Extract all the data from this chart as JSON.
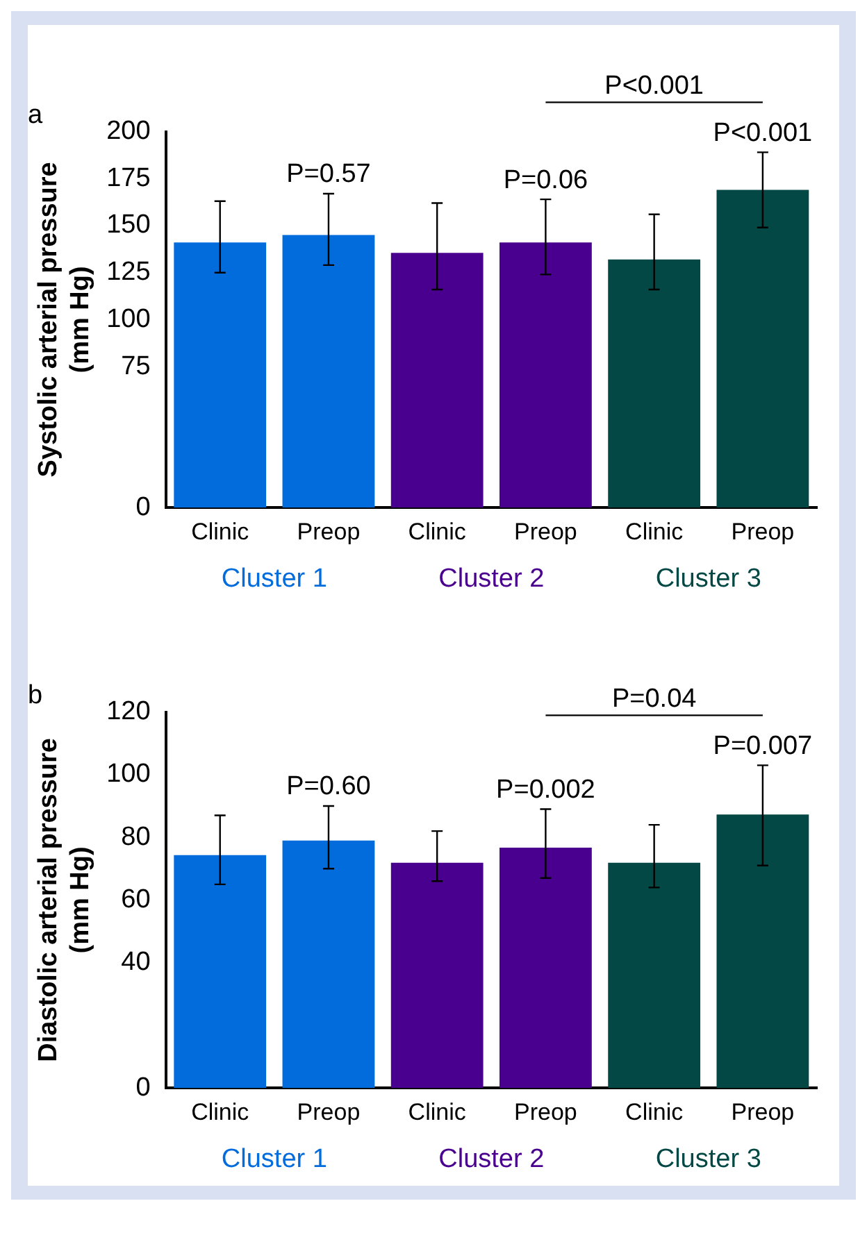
{
  "chart_data": [
    {
      "type": "bar",
      "title": "a",
      "ylabel": "Systolic arterial pressure\n(mm Hg)",
      "categories": [
        "Clinic",
        "Preop",
        "Clinic",
        "Preop",
        "Clinic",
        "Preop"
      ],
      "values": [
        141,
        145,
        135.5,
        141,
        132,
        169
      ],
      "colors": [
        "#026cdc",
        "#026cdc",
        "#4a008f",
        "#4a008f",
        "#034844",
        "#034844"
      ],
      "errors": [
        [
          125,
          163
        ],
        [
          129,
          167
        ],
        [
          116,
          162
        ],
        [
          124,
          164
        ],
        [
          116,
          156
        ],
        [
          149,
          189
        ]
      ],
      "ylim": [
        0,
        200
      ],
      "yticks": [
        0,
        75,
        100,
        125,
        150,
        175,
        200
      ],
      "grid": false,
      "annotations": [
        "P=0.57",
        "P=0.06",
        "P<0.001",
        "P<0.001",
        "Cluster 1",
        "Cluster 2",
        "Cluster 3"
      ]
    },
    {
      "type": "bar",
      "title": "b",
      "ylabel": "Diastolic arterial pressure\n(mm Hg)",
      "categories": [
        "Clinic",
        "Preop",
        "Clinic",
        "Preop",
        "Clinic",
        "Preop"
      ],
      "values": [
        74.3,
        79,
        71.9,
        76.7,
        71.9,
        87.3
      ],
      "colors": [
        "#026cdc",
        "#026cdc",
        "#4a008f",
        "#4a008f",
        "#034844",
        "#034844"
      ],
      "errors": [
        [
          65,
          87
        ],
        [
          70,
          90
        ],
        [
          66,
          82
        ],
        [
          67,
          89
        ],
        [
          64,
          84
        ],
        [
          71,
          103
        ]
      ],
      "ylim": [
        0,
        120
      ],
      "yticks": [
        0,
        40,
        60,
        80,
        100,
        120
      ],
      "grid": false,
      "annotations": [
        "P=0.60",
        "P=0.002",
        "P=0.007",
        "P=0.04",
        "Cluster 1",
        "Cluster 2",
        "Cluster 3"
      ]
    }
  ]
}
